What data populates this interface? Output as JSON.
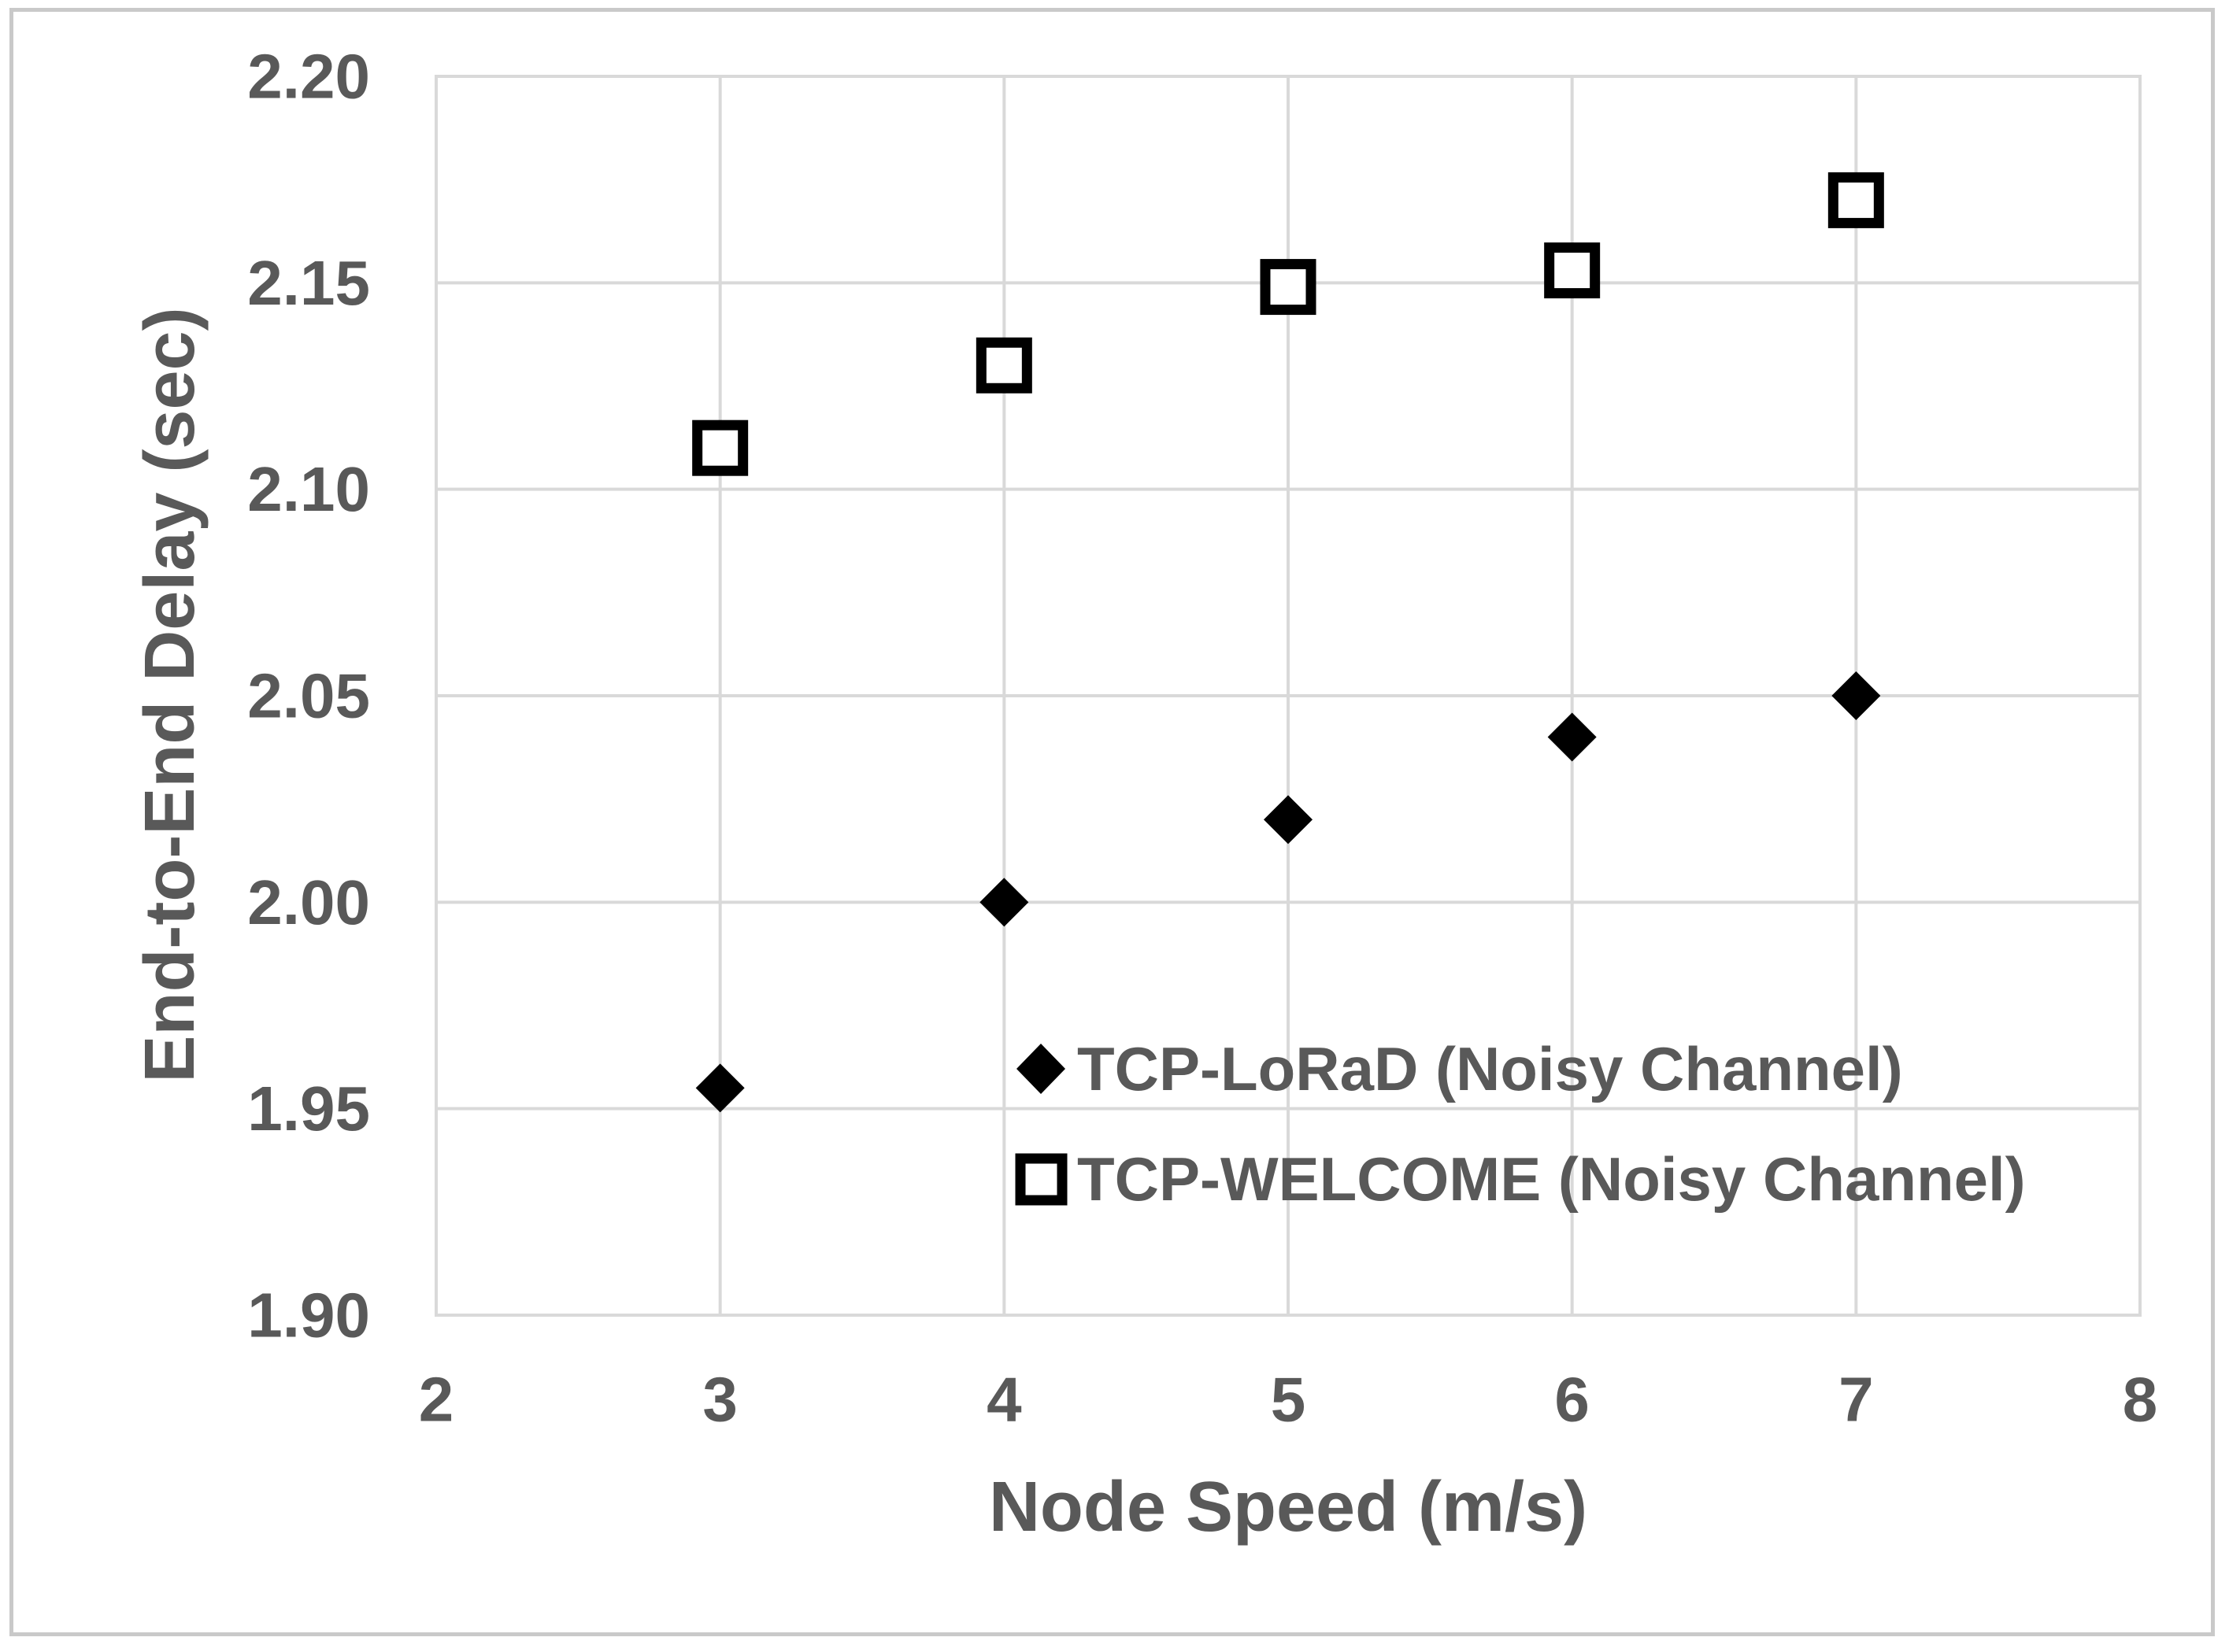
{
  "chart_data": {
    "type": "scatter",
    "title": "",
    "xlabel": "Node Speed (m/s)",
    "ylabel": "End-to-End Delay (sec)",
    "xlim": [
      2,
      8
    ],
    "ylim": [
      1.9,
      2.2
    ],
    "x_ticks": [
      "2",
      "3",
      "4",
      "5",
      "6",
      "7",
      "8"
    ],
    "y_ticks": [
      "1.90",
      "1.95",
      "2.00",
      "2.05",
      "2.10",
      "2.15",
      "2.20"
    ],
    "grid": true,
    "legend_position": "inside-bottom-center",
    "series": [
      {
        "name": "TCP-LoRaD (Noisy Channel)",
        "marker": "filled-diamond",
        "x": [
          3,
          4,
          5,
          6,
          7
        ],
        "y": [
          1.955,
          2.0,
          2.02,
          2.04,
          2.05
        ]
      },
      {
        "name": "TCP-WELCOME (Noisy Channel)",
        "marker": "open-square",
        "x": [
          3,
          4,
          5,
          6,
          7
        ],
        "y": [
          2.11,
          2.13,
          2.149,
          2.153,
          2.17
        ]
      }
    ]
  },
  "colors": {
    "text": "#595959",
    "gridline": "#d9d9d9",
    "frame": "#c9c9c9",
    "marker": "#000000",
    "marker_fill": "#ffffff",
    "background": "#ffffff"
  }
}
